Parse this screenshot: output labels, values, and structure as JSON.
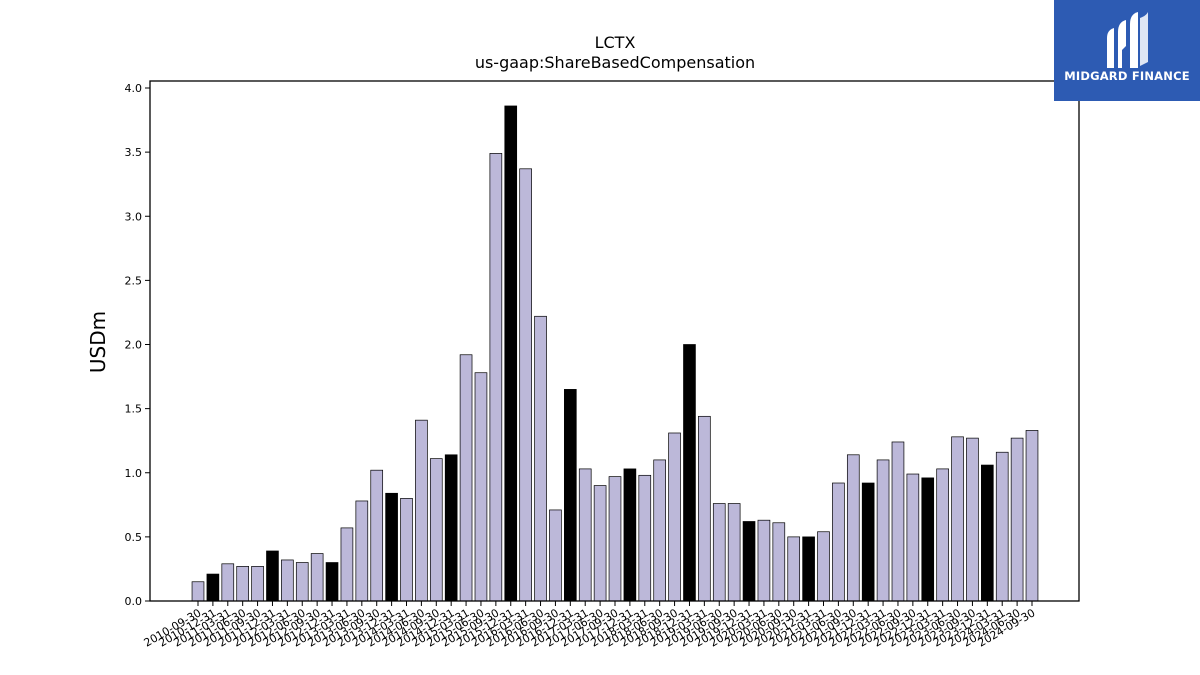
{
  "chart_data": {
    "type": "bar",
    "title": "LCTX",
    "subtitle": "us-gaap:ShareBasedCompensation",
    "xlabel": "",
    "ylabel": "USDm",
    "ylim": [
      0,
      4.0
    ],
    "yticks": [
      "0.0",
      "0.5",
      "1.0",
      "1.5",
      "2.0",
      "2.5",
      "3.0",
      "3.5",
      "4.0"
    ],
    "grid": false,
    "colors": {
      "quarter": "#bcb8d9",
      "year_end": "#000000",
      "edge": "#000000"
    },
    "categories": [
      "2010-09-30",
      "2010-12-31",
      "2011-03-31",
      "2011-06-30",
      "2011-09-30",
      "2011-12-31",
      "2012-03-31",
      "2012-06-30",
      "2012-09-30",
      "2012-12-31",
      "2013-03-31",
      "2013-06-30",
      "2013-09-30",
      "2013-12-31",
      "2014-03-31",
      "2014-06-30",
      "2014-09-30",
      "2014-12-31",
      "2015-03-31",
      "2015-06-30",
      "2015-09-30",
      "2015-12-31",
      "2016-03-31",
      "2016-06-30",
      "2016-09-30",
      "2016-12-31",
      "2017-03-31",
      "2017-06-30",
      "2017-09-30",
      "2017-12-31",
      "2018-03-31",
      "2018-06-30",
      "2018-09-30",
      "2018-12-31",
      "2019-03-31",
      "2019-06-30",
      "2019-09-30",
      "2019-12-31",
      "2020-03-31",
      "2020-06-30",
      "2020-09-30",
      "2020-12-31",
      "2021-03-31",
      "2021-06-30",
      "2021-09-30",
      "2021-12-31",
      "2022-03-31",
      "2022-06-30",
      "2022-09-30",
      "2022-12-31",
      "2023-03-31",
      "2023-06-30",
      "2023-09-30",
      "2023-12-31",
      "2024-03-31",
      "2024-06-30",
      "2024-09-30"
    ],
    "values": [
      0.15,
      0.21,
      0.29,
      0.27,
      0.27,
      0.39,
      0.32,
      0.3,
      0.37,
      0.3,
      0.57,
      0.78,
      1.02,
      0.84,
      0.8,
      1.41,
      1.11,
      1.14,
      1.92,
      1.78,
      3.49,
      3.86,
      3.37,
      2.22,
      0.71,
      1.65,
      1.03,
      0.9,
      0.97,
      1.03,
      0.98,
      1.1,
      1.31,
      2.0,
      1.44,
      0.76,
      0.76,
      0.62,
      0.63,
      0.61,
      0.5,
      0.5,
      0.54,
      0.92,
      1.14,
      0.92,
      1.1,
      1.24,
      0.99,
      0.96,
      1.03,
      1.28,
      1.27,
      1.06,
      1.16,
      1.27,
      1.33
    ],
    "year_end_flags": [
      0,
      1,
      0,
      0,
      0,
      1,
      0,
      0,
      0,
      1,
      0,
      0,
      0,
      1,
      0,
      0,
      0,
      1,
      0,
      0,
      0,
      1,
      0,
      0,
      0,
      1,
      0,
      0,
      0,
      1,
      0,
      0,
      0,
      1,
      0,
      0,
      0,
      1,
      0,
      0,
      0,
      1,
      0,
      0,
      0,
      1,
      0,
      0,
      0,
      1,
      0,
      0,
      0,
      1,
      0,
      0,
      0
    ]
  },
  "logo": {
    "text": "MIDGARD FINANCE",
    "icon": "midgard-logo-icon"
  }
}
